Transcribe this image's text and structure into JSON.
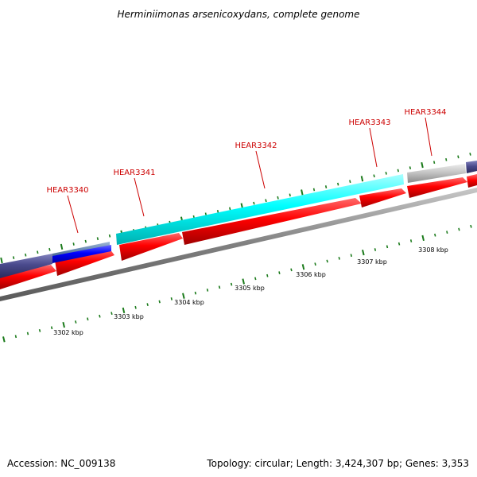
{
  "title": "Herminiimonas arsenicoxydans, complete genome",
  "footer": {
    "accession": "Accession: NC_009138",
    "topology": "Topology: circular; Length: 3,424,307 bp; Genes: 3,353"
  },
  "colors": {
    "cds_forward": "#ff0000",
    "gene_cyan": "#00ffff",
    "gene_navy": "#4a4a8c",
    "gene_blue": "#0000ff",
    "gene_steelblue": "#5f7fa8",
    "gene_grey": "#c0c0c0",
    "backbone": "#808080",
    "tick_major": "#1a7a1a",
    "tick_minor": "#1a7a1a",
    "label_color": "#cc0000"
  },
  "gene_labels": [
    {
      "text": "HEAR3340"
    },
    {
      "text": "HEAR3341"
    },
    {
      "text": "HEAR3342"
    },
    {
      "text": "HEAR3343"
    },
    {
      "text": "HEAR3344"
    }
  ],
  "kbp_labels": [
    "3302 kbp",
    "3303 kbp",
    "3304 kbp",
    "3305 kbp",
    "3306 kbp",
    "3307 kbp",
    "3308 kbp"
  ]
}
